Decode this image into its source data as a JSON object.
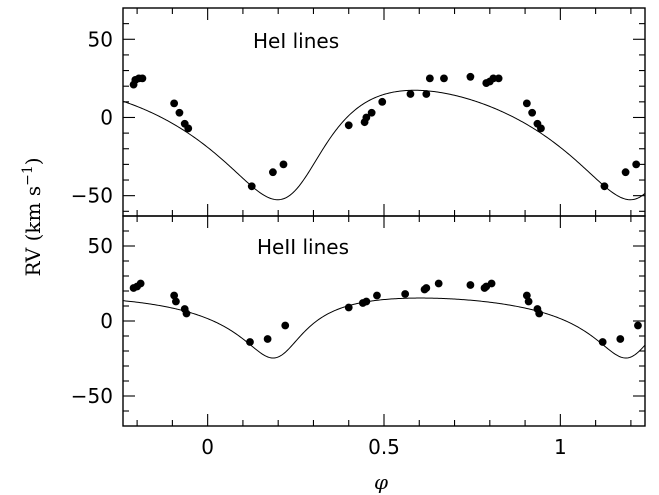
{
  "chart_data": {
    "type": "scatter",
    "xlabel": "φ",
    "ylabel": "RV (km s",
    "ylabel_sup": "−1",
    "ylabel_close": ")",
    "xlim": [
      -0.24,
      1.24
    ],
    "x_ticks": [
      0,
      0.5,
      1
    ],
    "x_tick_labels": [
      "0",
      "0.5",
      "1"
    ],
    "y_ticks": [
      -50,
      0,
      50
    ],
    "y_tick_labels": [
      "−50",
      "0",
      "50"
    ],
    "grid": false,
    "panels": [
      {
        "label": "HeI lines",
        "ylim": [
          -63,
          70
        ],
        "model": {
          "gamma": -9,
          "K": 35,
          "e": 0.3,
          "omega_deg": 215,
          "T0": 0.25
        },
        "series": [
          {
            "points": [
              [
                -0.21,
                21
              ],
              [
                -0.205,
                24
              ],
              [
                -0.195,
                25
              ],
              [
                -0.185,
                25
              ],
              [
                -0.095,
                9
              ],
              [
                -0.08,
                3
              ],
              [
                -0.065,
                -4
              ],
              [
                -0.055,
                -7
              ],
              [
                0.125,
                -44
              ],
              [
                0.185,
                -35
              ],
              [
                0.215,
                -30
              ],
              [
                0.4,
                -5
              ],
              [
                0.445,
                -3
              ],
              [
                0.45,
                0
              ],
              [
                0.465,
                3
              ],
              [
                0.495,
                10
              ],
              [
                0.575,
                15
              ],
              [
                0.62,
                15
              ],
              [
                0.63,
                25
              ],
              [
                0.67,
                25
              ],
              [
                0.745,
                26
              ],
              [
                0.79,
                22
              ],
              [
                0.8,
                23
              ],
              [
                0.81,
                25
              ],
              [
                0.825,
                25
              ],
              [
                0.905,
                9
              ],
              [
                0.92,
                3
              ],
              [
                0.935,
                -4
              ],
              [
                0.945,
                -7
              ],
              [
                1.125,
                -44
              ],
              [
                1.185,
                -35
              ],
              [
                1.215,
                -30
              ]
            ]
          }
        ]
      },
      {
        "label": "HeII lines",
        "ylim": [
          -70,
          70
        ],
        "model": {
          "gamma": 4,
          "K": 20,
          "e": 0.45,
          "omega_deg": 195,
          "T0": 0.2
        },
        "series": [
          {
            "points": [
              [
                -0.21,
                22
              ],
              [
                -0.2,
                23
              ],
              [
                -0.19,
                25
              ],
              [
                -0.095,
                17
              ],
              [
                -0.09,
                13
              ],
              [
                -0.065,
                8
              ],
              [
                -0.06,
                5
              ],
              [
                0.12,
                -14
              ],
              [
                0.17,
                -12
              ],
              [
                0.22,
                -3
              ],
              [
                0.4,
                9
              ],
              [
                0.44,
                12
              ],
              [
                0.45,
                13
              ],
              [
                0.48,
                17
              ],
              [
                0.56,
                18
              ],
              [
                0.615,
                21
              ],
              [
                0.62,
                22
              ],
              [
                0.655,
                25
              ],
              [
                0.745,
                24
              ],
              [
                0.785,
                22
              ],
              [
                0.79,
                23
              ],
              [
                0.805,
                25
              ],
              [
                0.905,
                17
              ],
              [
                0.91,
                13
              ],
              [
                0.935,
                8
              ],
              [
                0.94,
                5
              ],
              [
                1.12,
                -14
              ],
              [
                1.17,
                -12
              ],
              [
                1.22,
                -3
              ]
            ]
          }
        ]
      }
    ]
  }
}
